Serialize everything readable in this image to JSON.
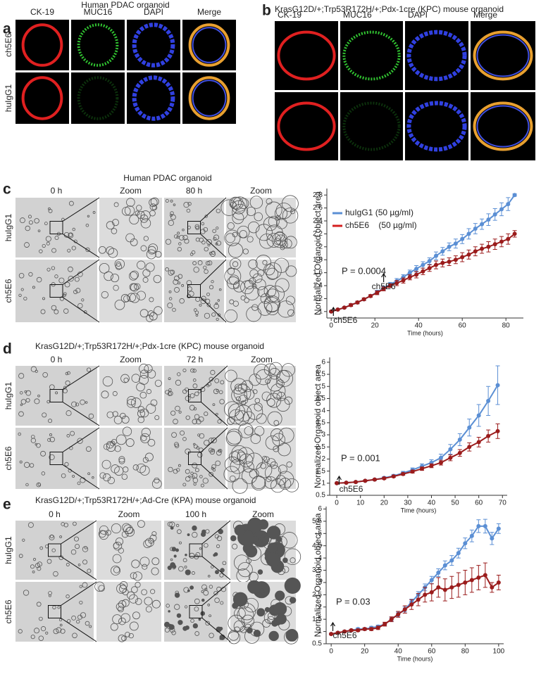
{
  "figure": {
    "panels": [
      {
        "letter": "a",
        "title": "Human PDAC organoid",
        "columns": [
          "CK-19",
          "MUC16",
          "DAPI",
          "Merge"
        ],
        "rows": [
          "ch5E6",
          "huIgG1"
        ]
      },
      {
        "letter": "b",
        "title": "KrasG12D/+;Trp53R172H/+;Pdx-1cre (KPC) mouse organoid",
        "columns": [
          "CK-19",
          "MUC16",
          "DAPI",
          "Merge"
        ]
      },
      {
        "letter": "c",
        "title": "Human PDAC organoid",
        "columns": [
          "0 h",
          "Zoom",
          "80 h",
          "Zoom"
        ],
        "rows": [
          "huIgG1",
          "ch5E6"
        ]
      },
      {
        "letter": "d",
        "title": "KrasG12D/+;Trp53R172H/+;Pdx-1cre (KPC) mouse organoid",
        "columns": [
          "0 h",
          "Zoom",
          "72 h",
          "Zoom"
        ],
        "rows": [
          "huIgG1",
          "ch5E6"
        ]
      },
      {
        "letter": "e",
        "title": "KrasG12D/+;Trp53R172H/+;Ad-Cre (KPA) mouse organoid",
        "columns": [
          "0 h",
          "Zoom",
          "100 h",
          "Zoom"
        ],
        "rows": [
          "huIgG1",
          "ch5E6"
        ]
      }
    ]
  },
  "chart_data": [
    {
      "type": "line",
      "xlabel": "Time (hours)",
      "ylabel": "Normalized Organoid object area",
      "p_text": "P = 0.0004",
      "arrows": [
        {
          "label": "ch5E6",
          "x": 1
        },
        {
          "label": "ch5E6",
          "x": 24
        }
      ],
      "x": [
        0,
        3,
        6,
        9,
        12,
        15,
        18,
        21,
        24,
        27,
        30,
        33,
        36,
        39,
        42,
        45,
        48,
        51,
        54,
        57,
        60,
        63,
        66,
        69,
        72,
        75,
        78,
        81,
        84
      ],
      "series": [
        {
          "name": "huIgG1 (50 µg/ml)",
          "color": "#5b8fd4",
          "values": [
            1.0,
            1.03,
            1.06,
            1.1,
            1.14,
            1.19,
            1.24,
            1.3,
            1.36,
            1.42,
            1.47,
            1.53,
            1.6,
            1.66,
            1.72,
            1.78,
            1.86,
            1.93,
            2.0,
            2.05,
            2.12,
            2.2,
            2.28,
            2.35,
            2.42,
            2.5,
            2.58,
            2.66,
            2.8
          ],
          "errors": [
            0.01,
            0.01,
            0.01,
            0.02,
            0.02,
            0.02,
            0.02,
            0.03,
            0.03,
            0.03,
            0.04,
            0.04,
            0.04,
            0.05,
            0.05,
            0.05,
            0.06,
            0.06,
            0.06,
            0.07,
            0.07,
            0.08,
            0.08,
            0.08,
            0.09,
            0.09,
            0.1,
            0.1,
            0.02
          ]
        },
        {
          "name": "ch5E6    (50 µg/ml)",
          "color": "#9b1c1c",
          "values": [
            1.0,
            1.03,
            1.06,
            1.1,
            1.14,
            1.19,
            1.24,
            1.29,
            1.35,
            1.4,
            1.44,
            1.48,
            1.53,
            1.57,
            1.62,
            1.67,
            1.72,
            1.75,
            1.77,
            1.8,
            1.84,
            1.88,
            1.93,
            1.97,
            2.0,
            2.04,
            2.08,
            2.12,
            2.2
          ],
          "errors": [
            0.01,
            0.01,
            0.01,
            0.02,
            0.02,
            0.02,
            0.02,
            0.03,
            0.03,
            0.03,
            0.04,
            0.04,
            0.04,
            0.05,
            0.05,
            0.05,
            0.06,
            0.06,
            0.06,
            0.06,
            0.07,
            0.07,
            0.07,
            0.07,
            0.08,
            0.08,
            0.08,
            0.08,
            0.05
          ]
        }
      ],
      "xlim": [
        -2,
        88
      ],
      "ylim": [
        0.9,
        2.9
      ],
      "xticks": [
        0,
        20,
        40,
        60,
        80
      ],
      "yticks": [
        1,
        1.2,
        1.4,
        1.6,
        1.8,
        2,
        2.2,
        2.4,
        2.6,
        2.8
      ],
      "legend": "upper left"
    },
    {
      "type": "line",
      "xlabel": "Time (hours)",
      "ylabel": "Normalized Organoid object area",
      "p_text": "P = 0.001",
      "arrows": [
        {
          "label": "ch5E6",
          "x": 1
        }
      ],
      "x": [
        0,
        4,
        8,
        12,
        16,
        20,
        24,
        28,
        32,
        36,
        40,
        44,
        48,
        52,
        56,
        60,
        64,
        68
      ],
      "series": [
        {
          "color": "#5b8fd4",
          "values": [
            1.0,
            1.02,
            1.05,
            1.1,
            1.15,
            1.22,
            1.3,
            1.42,
            1.55,
            1.7,
            1.85,
            2.05,
            2.4,
            2.8,
            3.3,
            3.8,
            4.4,
            5.05
          ],
          "errors": [
            0.02,
            0.02,
            0.03,
            0.03,
            0.04,
            0.05,
            0.06,
            0.07,
            0.08,
            0.1,
            0.12,
            0.15,
            0.2,
            0.25,
            0.35,
            0.45,
            0.6,
            0.8
          ]
        },
        {
          "color": "#9b1c1c",
          "values": [
            1.0,
            1.02,
            1.05,
            1.1,
            1.15,
            1.2,
            1.28,
            1.38,
            1.48,
            1.6,
            1.72,
            1.85,
            2.05,
            2.25,
            2.5,
            2.7,
            2.95,
            3.15
          ],
          "errors": [
            0.02,
            0.02,
            0.02,
            0.03,
            0.03,
            0.04,
            0.04,
            0.05,
            0.06,
            0.07,
            0.08,
            0.1,
            0.12,
            0.14,
            0.17,
            0.2,
            0.25,
            0.3
          ]
        }
      ],
      "xlim": [
        -3,
        72
      ],
      "ylim": [
        0.5,
        6.2
      ],
      "xticks": [
        0,
        10,
        20,
        30,
        40,
        50,
        60,
        70
      ],
      "yticks": [
        0.5,
        1,
        1.5,
        2,
        2.5,
        3,
        3.5,
        4,
        4.5,
        5,
        5.5,
        6
      ]
    },
    {
      "type": "line",
      "xlabel": "Time (hours)",
      "ylabel": "Normalized Organoid object area",
      "p_text": "P = 0.03",
      "arrows": [
        {
          "label": "ch5E6",
          "x": 1
        }
      ],
      "x": [
        0,
        4,
        8,
        12,
        16,
        20,
        24,
        28,
        32,
        36,
        40,
        44,
        48,
        52,
        56,
        60,
        64,
        68,
        72,
        76,
        80,
        84,
        88,
        92,
        96,
        100
      ],
      "series": [
        {
          "color": "#5b8fd4",
          "values": [
            0.9,
            0.95,
            1.0,
            1.05,
            1.1,
            1.1,
            1.15,
            1.2,
            1.3,
            1.5,
            1.7,
            1.9,
            2.2,
            2.5,
            2.8,
            3.1,
            3.4,
            3.7,
            3.9,
            4.2,
            4.6,
            4.9,
            5.3,
            5.3,
            4.8,
            5.2
          ],
          "errors": [
            0.03,
            0.03,
            0.04,
            0.04,
            0.05,
            0.05,
            0.06,
            0.06,
            0.07,
            0.08,
            0.09,
            0.1,
            0.12,
            0.13,
            0.14,
            0.15,
            0.16,
            0.18,
            0.2,
            0.2,
            0.22,
            0.24,
            0.26,
            0.28,
            0.25,
            0.2
          ]
        },
        {
          "color": "#9b1c1c",
          "values": [
            0.9,
            0.95,
            1.0,
            1.05,
            1.05,
            1.1,
            1.1,
            1.15,
            1.3,
            1.5,
            1.7,
            1.9,
            2.1,
            2.3,
            2.5,
            2.6,
            2.8,
            2.7,
            2.8,
            2.9,
            3.0,
            3.1,
            3.2,
            3.3,
            2.8,
            3.0
          ],
          "errors": [
            0.03,
            0.03,
            0.04,
            0.04,
            0.05,
            0.05,
            0.06,
            0.07,
            0.08,
            0.1,
            0.12,
            0.15,
            0.2,
            0.25,
            0.3,
            0.35,
            0.4,
            0.45,
            0.45,
            0.5,
            0.5,
            0.5,
            0.5,
            0.5,
            0.2,
            0.3
          ]
        }
      ],
      "xlim": [
        -3,
        103
      ],
      "ylim": [
        0.5,
        6.1
      ],
      "xticks": [
        0,
        20,
        40,
        60,
        80,
        100
      ],
      "yticks": [
        0.5,
        1,
        1.5,
        2,
        2.5,
        3,
        3.5,
        4,
        4.5,
        5,
        5.5,
        6
      ]
    }
  ]
}
